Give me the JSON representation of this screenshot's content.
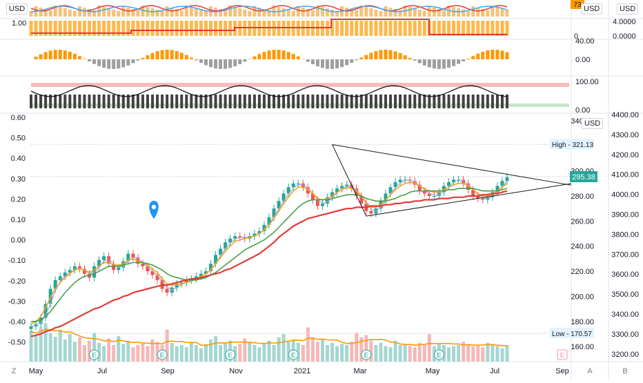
{
  "chart_data": {
    "type": "candlestick",
    "symbol_currency": "USD",
    "x_axis": {
      "ticks": [
        "May",
        "Jul",
        "Sep",
        "Nov",
        "2021",
        "Mar",
        "May",
        "Jul",
        "Sep"
      ],
      "corner_left": "Z",
      "corner_a": "A",
      "corner_b": "B"
    },
    "price_axis": {
      "ticks": [
        160,
        180,
        200,
        220,
        240,
        260,
        280,
        300,
        320,
        340
      ],
      "ylim": [
        148,
        346
      ],
      "currency": "USD",
      "high_label": "High",
      "high_value": "321.13",
      "low_label": "Low",
      "low_value": "170.57",
      "last_value": "295.38"
    },
    "percent_axis": {
      "ticks": [
        "0.60",
        "0.50",
        "0.40",
        "0.30",
        "0.20",
        "0.10",
        "0.00",
        "-0.10",
        "-0.20",
        "-0.30",
        "-0.40",
        "-0.50"
      ]
    },
    "index_axis": {
      "ticks": [
        "4400.00",
        "4300.00",
        "4200.00",
        "4100.00",
        "4000.00",
        "3900.00",
        "3800.00",
        "3700.00",
        "3600.00",
        "3500.00",
        "3400.00",
        "3300.00",
        "3200.00"
      ],
      "currency": "USD"
    },
    "close_series": [
      176,
      178,
      183,
      194,
      206,
      213,
      216,
      219,
      221,
      224,
      222,
      218,
      215,
      224,
      229,
      232,
      226,
      221,
      223,
      228,
      234,
      231,
      226,
      224,
      220,
      217,
      213,
      206,
      203,
      207,
      210,
      211,
      213,
      214,
      216,
      218,
      220,
      226,
      233,
      238,
      243,
      246,
      248,
      247,
      246,
      248,
      250,
      252,
      257,
      263,
      270,
      276,
      282,
      287,
      290,
      290,
      287,
      282,
      277,
      272,
      274,
      279,
      283,
      286,
      288,
      289,
      286,
      280,
      274,
      268,
      266,
      270,
      276,
      282,
      287,
      291,
      293,
      293,
      292,
      289,
      284,
      282,
      280,
      280,
      283,
      288,
      291,
      293,
      293,
      290,
      285,
      280,
      278,
      277,
      279,
      283,
      288,
      292,
      295
    ],
    "ema_fast_series": [
      178,
      180,
      184,
      191,
      199,
      206,
      211,
      215,
      218,
      221,
      222,
      221,
      219,
      221,
      224,
      227,
      227,
      225,
      225,
      226,
      229,
      230,
      228,
      227,
      225,
      222,
      219,
      214,
      210,
      209,
      209,
      210,
      211,
      212,
      214,
      216,
      218,
      221,
      226,
      231,
      236,
      240,
      244,
      245,
      246,
      247,
      248,
      250,
      253,
      257,
      262,
      268,
      274,
      279,
      284,
      287,
      287,
      285,
      282,
      278,
      277,
      278,
      280,
      283,
      285,
      287,
      286,
      284,
      280,
      275,
      271,
      271,
      273,
      277,
      281,
      285,
      288,
      290,
      291,
      290,
      288,
      286,
      284,
      283,
      283,
      285,
      287,
      289,
      290,
      290,
      288,
      285,
      282,
      280,
      280,
      281,
      284,
      287,
      290
    ],
    "sma_mid_series": [
      180,
      180,
      181,
      184,
      188,
      193,
      198,
      203,
      207,
      211,
      214,
      216,
      217,
      218,
      220,
      222,
      224,
      224,
      224,
      225,
      226,
      227,
      227,
      227,
      226,
      225,
      223,
      221,
      218,
      216,
      215,
      214,
      213,
      213,
      213,
      214,
      215,
      217,
      219,
      222,
      225,
      228,
      231,
      234,
      237,
      239,
      241,
      243,
      245,
      248,
      251,
      255,
      259,
      263,
      267,
      271,
      274,
      276,
      277,
      277,
      277,
      277,
      278,
      279,
      280,
      281,
      281,
      281,
      280,
      278,
      277,
      276,
      276,
      276,
      277,
      278,
      280,
      281,
      283,
      284,
      284,
      284,
      284,
      284,
      284,
      284,
      285,
      285,
      286,
      286,
      286,
      286,
      285,
      284,
      284,
      284,
      284,
      285,
      286
    ],
    "sma_long_series": [
      168,
      169,
      170,
      172,
      173,
      175,
      176,
      178,
      180,
      182,
      184,
      186,
      188,
      190,
      191,
      193,
      195,
      197,
      198,
      200,
      201,
      203,
      204,
      205,
      206,
      207,
      208,
      209,
      209,
      210,
      211,
      212,
      213,
      214,
      214,
      215,
      216,
      217,
      218,
      219,
      221,
      222,
      224,
      226,
      228,
      230,
      232,
      234,
      237,
      240,
      243,
      247,
      250,
      253,
      256,
      258,
      260,
      262,
      263,
      264,
      265,
      266,
      267,
      268,
      269,
      270,
      270,
      271,
      271,
      271,
      272,
      272,
      272,
      273,
      273,
      274,
      274,
      275,
      275,
      276,
      276,
      277,
      277,
      277,
      278,
      278,
      278,
      279,
      279,
      279,
      280,
      280,
      280,
      281,
      281,
      282,
      282,
      283,
      284
    ],
    "volume_series": [
      0.55,
      0.48,
      0.62,
      0.7,
      0.52,
      0.45,
      0.58,
      0.4,
      0.5,
      0.36,
      0.44,
      0.3,
      0.38,
      0.52,
      0.34,
      0.28,
      0.42,
      0.3,
      0.46,
      0.32,
      0.38,
      0.26,
      0.3,
      0.34,
      0.28,
      0.4,
      0.36,
      0.3,
      0.58,
      0.34,
      0.28,
      0.3,
      0.26,
      0.36,
      0.3,
      0.24,
      0.32,
      0.4,
      0.46,
      0.3,
      0.34,
      0.38,
      0.28,
      0.32,
      0.42,
      0.36,
      0.3,
      0.26,
      0.34,
      0.38,
      0.3,
      0.44,
      0.5,
      0.36,
      0.4,
      0.34,
      0.3,
      0.62,
      0.44,
      0.36,
      0.4,
      0.3,
      0.34,
      0.28,
      0.32,
      0.3,
      0.36,
      0.52,
      0.44,
      0.48,
      0.38,
      0.3,
      0.34,
      0.28,
      0.26,
      0.38,
      0.3,
      0.32,
      0.28,
      0.26,
      0.34,
      0.3,
      0.5,
      0.28,
      0.32,
      0.3,
      0.26,
      0.28,
      0.3,
      0.36,
      0.32,
      0.28,
      0.3,
      0.26,
      0.34,
      0.3,
      0.28,
      0.24,
      0.3
    ],
    "triangle": {
      "upper": [
        [
          62,
          321
        ],
        [
          100,
          296
        ]
      ],
      "lower": [
        [
          69,
          264
        ],
        [
          100,
          283
        ]
      ]
    },
    "panes": [
      {
        "name": "oscillator-1",
        "label_right": "73",
        "right_ticks": [
          "4.0000",
          "0.0000"
        ],
        "currency": "USD"
      },
      {
        "name": "step-indicator",
        "label_left": "1.00",
        "right_ticks": [
          "0"
        ]
      },
      {
        "name": "histogram",
        "right_ticks": [
          "40.00",
          "0.00"
        ]
      },
      {
        "name": "rsi-like",
        "right_ticks": [
          "100.00",
          "0.00"
        ]
      }
    ],
    "event_markers": {
      "earnings_label": "E"
    },
    "colors": {
      "up": "#26a69a",
      "down": "#ef5350",
      "ema_fast": "#f7a21b",
      "ema_fast_light": "#9fa8da",
      "sma_mid": "#43a047",
      "sma_long": "#e53935",
      "triangle": "#131722",
      "last_price": "#26a69a",
      "accent_blue": "#2196f3",
      "volume_up": "#a5d6d2",
      "volume_down": "#f5b8b6",
      "orange_bar": "#ff9800"
    }
  }
}
